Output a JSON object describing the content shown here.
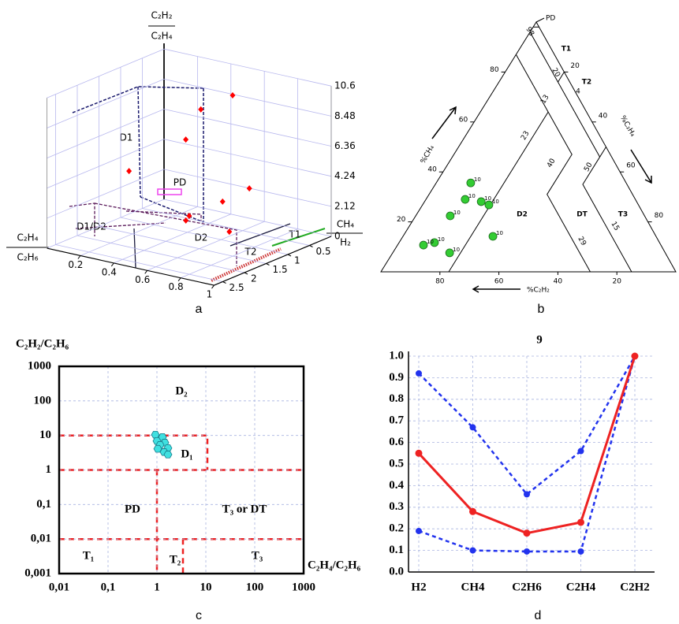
{
  "chart_data": [
    {
      "type": "scatter3d",
      "caption": "a",
      "z_label": [
        "C₂H₂",
        "C₂H₄"
      ],
      "x_label": [
        "C₂H₄",
        "C₂H₆"
      ],
      "y_label": [
        "CH₄",
        "H₂"
      ],
      "x": [
        0.54,
        0.35,
        0.26,
        0.05,
        0.64,
        0.48,
        0.41,
        0.39,
        0.65
      ],
      "y": [
        0.5,
        0.5,
        0.5,
        1,
        0.5,
        0.5,
        1,
        1,
        1
      ],
      "z": [
        9.38,
        7.89,
        5.53,
        3.4,
        3.08,
        1.73,
        1.18,
        0.8,
        0.69
      ],
      "color": "#ff0000",
      "xlim": [
        0,
        1
      ],
      "ylim": [
        0,
        2.7
      ],
      "zlim": [
        0,
        10.6
      ],
      "xticks": [
        0.2,
        0.4,
        0.6,
        0.8,
        1
      ],
      "yticks": [
        0.5,
        1,
        1.5,
        2,
        2.5
      ],
      "zticks": [
        0,
        2.12,
        4.24,
        6.36,
        8.48,
        10.6
      ],
      "grid": true,
      "annotations": [
        "D1",
        "PD",
        "D1/D2",
        "D2",
        "T1",
        "T2"
      ]
    },
    {
      "type": "ternary",
      "caption": "b",
      "axis_labels": [
        "%CH₄",
        "%C₂H₄",
        "%C₂H₂"
      ],
      "ch4": [
        35.6,
        29.0,
        28.1,
        26.8,
        22.4,
        14.2,
        11.7,
        10.7,
        7.6
      ],
      "c2h4": [
        11.7,
        13.3,
        19.2,
        22.5,
        11.7,
        30.5,
        12.0,
        8.8,
        19.3
      ],
      "c2h2": [
        52.7,
        57.7,
        52.7,
        50.7,
        65.9,
        55.3,
        76.3,
        80.5,
        73.1
      ],
      "point_labels": [
        "10",
        "10",
        "10",
        "10",
        "10",
        "10",
        "10",
        "10",
        "10"
      ],
      "color": "#33cc33",
      "ch4_ticks": [
        20,
        40,
        60,
        80
      ],
      "c2h4_ticks": [
        20,
        40,
        60,
        80
      ],
      "c2h2_ticks": [
        80,
        60,
        40,
        20
      ],
      "annotations": [
        "PD",
        "T1",
        "T2",
        "D2",
        "DT",
        "T3",
        "98",
        "20",
        "4",
        "13",
        "23",
        "40",
        "50",
        "15",
        "29"
      ]
    },
    {
      "type": "scatter",
      "caption": "c",
      "x_label": "C₂H₄/C₂H₆",
      "y_label": "C₂H₂/C₂H₆",
      "x": [
        0.93,
        1.3,
        1.0,
        1.45,
        1.16,
        1.68,
        1.04,
        1.4,
        1.68
      ],
      "y": [
        10.5,
        9.0,
        6.9,
        6.2,
        5.3,
        4.3,
        4.1,
        3.3,
        2.8
      ],
      "color": "#40e0e0",
      "log_x": true,
      "log_y": true,
      "grid": true,
      "xlim": [
        0.01,
        1000
      ],
      "ylim": [
        0.001,
        1000
      ],
      "xticks": [
        {
          "value": 0.01,
          "label": "0,01"
        },
        {
          "value": 0.1,
          "label": "0,1"
        },
        1,
        10,
        100,
        1000
      ],
      "yticks": [
        {
          "value": 0.001,
          "label": "0,001"
        },
        {
          "value": 0.01,
          "label": "0,01"
        },
        {
          "value": 0.1,
          "label": "0,1"
        },
        1,
        10,
        100,
        1000
      ],
      "annotations": [
        "D₂",
        "D₁",
        "PD",
        "T₃ or DT",
        "T₁",
        "T₂",
        "T₃"
      ]
    },
    {
      "type": "line",
      "caption": "d",
      "title": "9",
      "categories": [
        "H2",
        "CH4",
        "C2H6",
        "C2H4",
        "C2H2"
      ],
      "series": [
        {
          "color": "#2233ee",
          "linestyle": "dashed",
          "values": [
            0.92,
            0.67,
            0.36,
            0.56,
            1.0
          ]
        },
        {
          "color": "#2233ee",
          "linestyle": "dashed",
          "values": [
            0.19,
            0.1,
            0.095,
            0.095,
            1.0
          ]
        },
        {
          "color": "#ee2222",
          "linestyle": "solid",
          "values": [
            0.55,
            0.28,
            0.18,
            0.23,
            1.0
          ]
        }
      ],
      "ylim": [
        0,
        1
      ],
      "yticks": [
        {
          "value": 0,
          "label": "0.0"
        },
        0.1,
        0.2,
        0.3,
        0.4,
        0.5,
        0.6,
        0.7,
        0.8,
        0.9,
        {
          "value": 1,
          "label": "1.0"
        }
      ],
      "grid": true
    }
  ]
}
